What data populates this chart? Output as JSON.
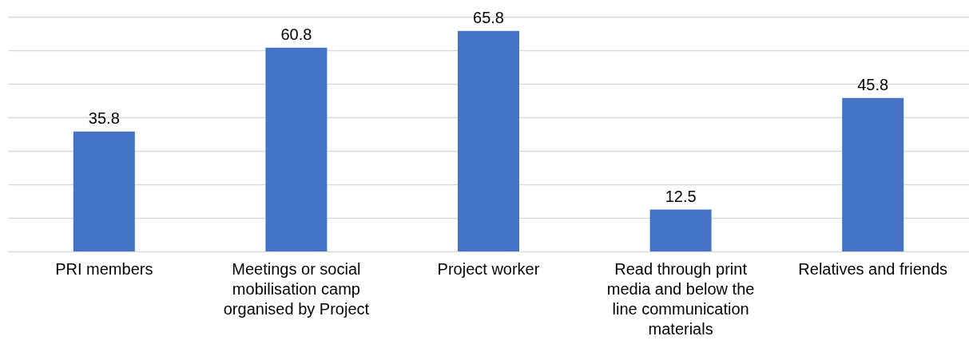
{
  "chart_data": {
    "type": "bar",
    "categories": [
      "PRI members",
      "Meetings or social mobilisation camp organised by Project",
      "Project worker",
      "Read through print media and below the line communication materials",
      "Relatives and friends"
    ],
    "values": [
      35.8,
      60.8,
      65.8,
      12.5,
      45.8
    ],
    "color": "#4472c4",
    "data_labels": true,
    "ylim": [
      0,
      70
    ],
    "yticks": [
      {
        "value": 0,
        "label": null
      },
      {
        "value": 10,
        "label": null
      },
      {
        "value": 20,
        "label": null
      },
      {
        "value": 30,
        "label": null
      },
      {
        "value": 40,
        "label": null
      },
      {
        "value": 50,
        "label": null
      },
      {
        "value": 60,
        "label": null
      },
      {
        "value": 70,
        "label": null
      }
    ],
    "grid": "y",
    "tick_labels": "x"
  }
}
